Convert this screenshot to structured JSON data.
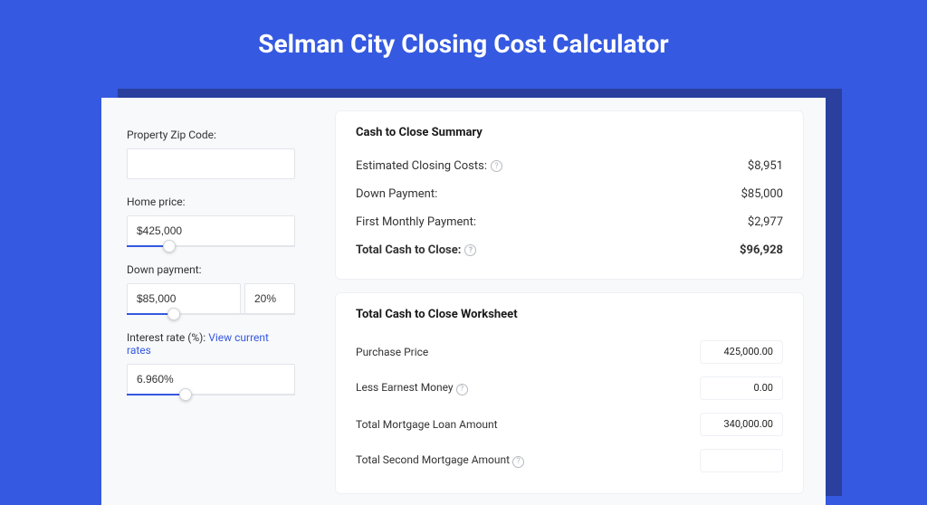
{
  "page_title": "Selman City Closing Cost Calculator",
  "colors": {
    "page_bg": "#3559e0",
    "shadow": "#2a3f9e",
    "panel_bg": "#ffffff",
    "container_bg": "#f8f9fb",
    "accent": "#3559e0",
    "text": "#333333",
    "border": "#e3e5ea"
  },
  "sidebar": {
    "zip": {
      "label": "Property Zip Code:",
      "value": ""
    },
    "home_price": {
      "label": "Home price:",
      "value": "$425,000",
      "slider_pct": 25
    },
    "down_payment": {
      "label": "Down payment:",
      "value": "$85,000",
      "pct_value": "20%",
      "slider_pct": 28
    },
    "interest": {
      "label": "Interest rate (%):",
      "link": "View current rates",
      "value": "6.960%",
      "slider_pct": 35
    }
  },
  "summary": {
    "title": "Cash to Close Summary",
    "rows": [
      {
        "label": "Estimated Closing Costs:",
        "help": true,
        "value": "$8,951",
        "bold": false
      },
      {
        "label": "Down Payment:",
        "help": false,
        "value": "$85,000",
        "bold": false
      },
      {
        "label": "First Monthly Payment:",
        "help": false,
        "value": "$2,977",
        "bold": false
      },
      {
        "label": "Total Cash to Close:",
        "help": true,
        "value": "$96,928",
        "bold": true
      }
    ]
  },
  "worksheet": {
    "title": "Total Cash to Close Worksheet",
    "rows": [
      {
        "label": "Purchase Price",
        "help": false,
        "value": "425,000.00"
      },
      {
        "label": "Less Earnest Money",
        "help": true,
        "value": "0.00"
      },
      {
        "label": "Total Mortgage Loan Amount",
        "help": false,
        "value": "340,000.00"
      },
      {
        "label": "Total Second Mortgage Amount",
        "help": true,
        "value": ""
      }
    ]
  }
}
